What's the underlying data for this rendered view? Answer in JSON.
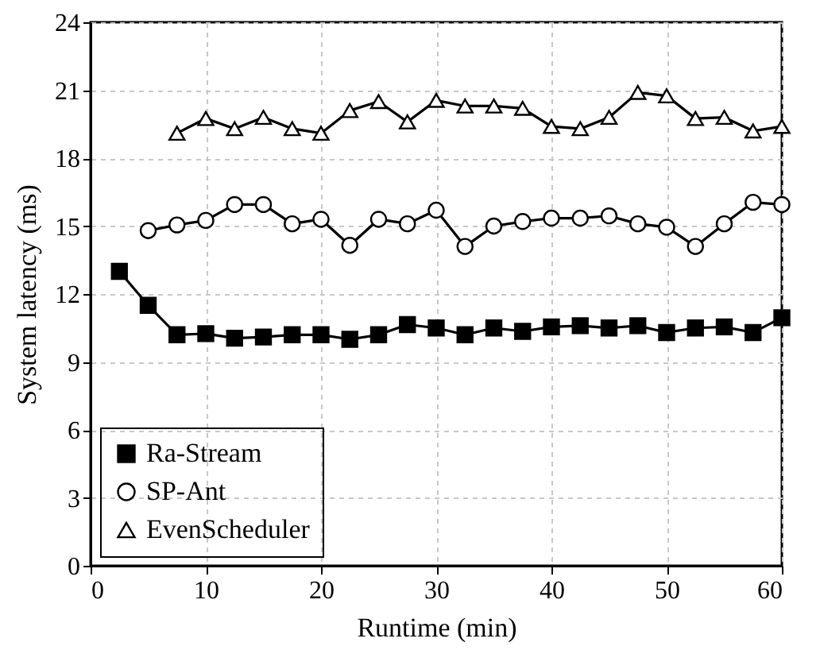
{
  "chart_data": {
    "type": "line",
    "xlabel": "Runtime (min)",
    "ylabel": "System latency (ms)",
    "x": [
      2.5,
      5,
      7.5,
      10,
      12.5,
      15,
      17.5,
      20,
      22.5,
      25,
      27.5,
      30,
      32.5,
      35,
      37.5,
      40,
      42.5,
      45,
      47.5,
      50,
      52.5,
      55,
      57.5,
      60
    ],
    "series": [
      {
        "name": "Ra-Stream",
        "color": "#000000",
        "marker": "square",
        "values": [
          13.0,
          11.5,
          10.2,
          10.25,
          10.05,
          10.1,
          10.2,
          10.2,
          10.0,
          10.2,
          10.65,
          10.5,
          10.2,
          10.5,
          10.35,
          10.55,
          10.6,
          10.5,
          10.6,
          10.3,
          10.5,
          10.55,
          10.3,
          10.95
        ]
      },
      {
        "name": "SP-Ant",
        "color": "#000000",
        "marker": "circle",
        "values": [
          null,
          14.8,
          15.05,
          15.25,
          15.95,
          15.95,
          15.1,
          15.3,
          14.15,
          15.3,
          15.1,
          15.7,
          14.1,
          15.0,
          15.2,
          15.35,
          15.35,
          15.45,
          15.1,
          14.95,
          14.1,
          15.1,
          16.05,
          15.95
        ]
      },
      {
        "name": "EvenScheduler",
        "color": "#000000",
        "marker": "triangle",
        "values": [
          null,
          null,
          19.1,
          19.75,
          19.3,
          19.8,
          19.3,
          19.1,
          20.1,
          20.5,
          19.6,
          20.55,
          20.3,
          20.3,
          20.2,
          19.4,
          19.3,
          19.8,
          20.9,
          20.75,
          19.75,
          19.8,
          19.2,
          19.4
        ]
      }
    ],
    "xlim": [
      0,
      60
    ],
    "xticks": [
      0,
      10,
      20,
      30,
      40,
      50,
      60
    ],
    "ylim": [
      0,
      24
    ],
    "yticks": [
      0,
      3,
      6,
      9,
      12,
      15,
      18,
      21,
      24
    ],
    "grid": true,
    "legend": "bottom left",
    "line_style": "solid"
  }
}
